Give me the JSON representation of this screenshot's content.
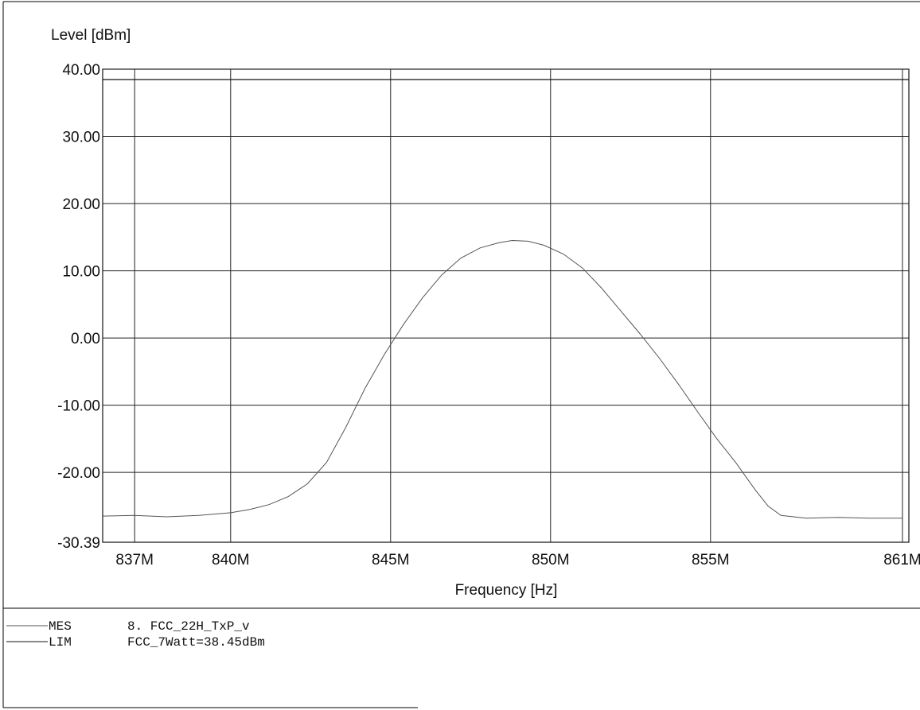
{
  "chart_data": {
    "type": "line",
    "ylabel": "Level [dBm]",
    "xlabel": "Frequency [Hz]",
    "ylim": [
      -30.39,
      40.0
    ],
    "xlim": [
      836.0,
      861.2
    ],
    "y_ticks": [
      {
        "value": 40.0,
        "label": "40.00"
      },
      {
        "value": 30.0,
        "label": "30.00"
      },
      {
        "value": 20.0,
        "label": "20.00"
      },
      {
        "value": 10.0,
        "label": "10.00"
      },
      {
        "value": 0.0,
        "label": "0.00"
      },
      {
        "value": -10.0,
        "label": "-10.00"
      },
      {
        "value": -20.0,
        "label": "-20.00"
      },
      {
        "value": -30.39,
        "label": "-30.39"
      }
    ],
    "x_ticks": [
      {
        "value": 837,
        "label": "837M"
      },
      {
        "value": 840,
        "label": "840M"
      },
      {
        "value": 845,
        "label": "845M"
      },
      {
        "value": 850,
        "label": "850M"
      },
      {
        "value": 855,
        "label": "855M"
      },
      {
        "value": 861,
        "label": "861M"
      }
    ],
    "grid_x": [
      837,
      840,
      845,
      850,
      855,
      861
    ],
    "grid_y": [
      40,
      30,
      20,
      10,
      0,
      -10,
      -20
    ],
    "grid": true,
    "series": [
      {
        "name": "MES",
        "color": "#555555",
        "x": [
          836.0,
          837.0,
          838.0,
          839.0,
          840.0,
          840.6,
          841.2,
          841.8,
          842.4,
          843.0,
          843.6,
          844.2,
          844.8,
          845.4,
          846.0,
          846.6,
          847.2,
          847.8,
          848.4,
          848.8,
          849.3,
          849.8,
          850.4,
          851.0,
          851.6,
          852.2,
          852.8,
          853.4,
          854.0,
          854.6,
          855.2,
          855.8,
          856.4,
          856.8,
          857.2,
          858.0,
          859.0,
          860.0,
          861.0
        ],
        "y": [
          -26.5,
          -26.4,
          -26.6,
          -26.4,
          -26.0,
          -25.5,
          -24.8,
          -23.6,
          -21.7,
          -18.5,
          -13.3,
          -7.5,
          -2.5,
          2.0,
          6.0,
          9.4,
          11.9,
          13.4,
          14.2,
          14.5,
          14.4,
          13.8,
          12.5,
          10.4,
          7.4,
          4.0,
          0.6,
          -3.0,
          -6.9,
          -11.0,
          -15.0,
          -18.6,
          -22.6,
          -25.0,
          -26.4,
          -26.8,
          -26.7,
          -26.8,
          -26.8
        ]
      },
      {
        "name": "LIM",
        "color": "#111111",
        "x": [
          836.0,
          861.2
        ],
        "y": [
          38.45,
          38.45
        ]
      }
    ],
    "legend_location": "bottom-left",
    "legend": [
      {
        "key": "MES",
        "text": "8. FCC_22H_TxP_v"
      },
      {
        "key": "LIM",
        "text": "FCC_7Watt=38.45dBm"
      }
    ]
  }
}
